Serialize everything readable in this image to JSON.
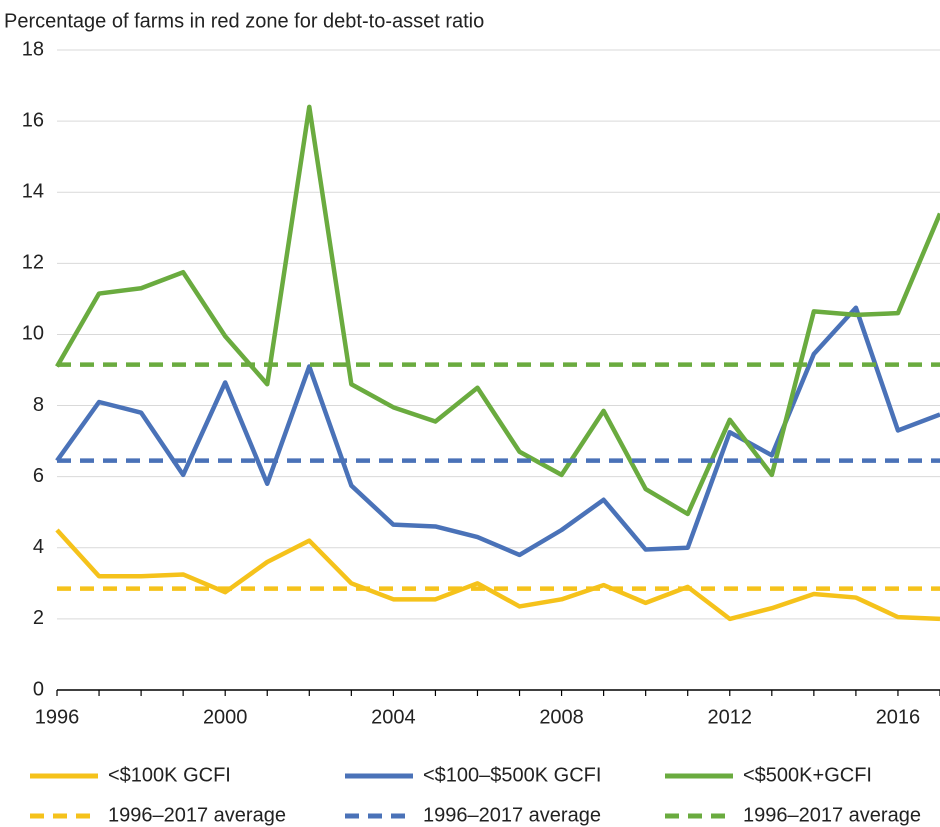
{
  "chart_data": {
    "type": "line",
    "title": "Percentage of farms in red zone for debt-to-asset ratio",
    "x": [
      1996,
      1997,
      1998,
      1999,
      2000,
      2001,
      2002,
      2003,
      2004,
      2005,
      2006,
      2007,
      2008,
      2009,
      2010,
      2011,
      2012,
      2013,
      2014,
      2015,
      2016,
      2017
    ],
    "xlim": [
      1996,
      2017
    ],
    "xticks": [
      1996,
      2000,
      2004,
      2008,
      2012,
      2016
    ],
    "ylim": [
      0,
      18
    ],
    "yticks": [
      0,
      2,
      4,
      6,
      8,
      10,
      12,
      14,
      16,
      18
    ],
    "grid": true,
    "series": [
      {
        "name": "<$100K GCFI",
        "color": "#f5c21b",
        "dashed": false,
        "values": [
          4.5,
          3.2,
          3.2,
          3.25,
          2.75,
          3.6,
          4.2,
          3.0,
          2.55,
          2.55,
          3.0,
          2.35,
          2.55,
          2.95,
          2.45,
          2.9,
          2.0,
          2.3,
          2.7,
          2.6,
          2.05,
          2.0
        ]
      },
      {
        "name": "<$100–$500K GCFI",
        "color": "#4a72b8",
        "dashed": false,
        "values": [
          6.45,
          8.1,
          7.8,
          6.05,
          8.65,
          5.8,
          9.1,
          5.75,
          4.65,
          4.6,
          4.3,
          3.8,
          4.5,
          5.35,
          3.95,
          4.0,
          7.25,
          6.6,
          9.45,
          10.75,
          7.3,
          7.75
        ]
      },
      {
        "name": "<$500K+GCFI",
        "color": "#6aab3f",
        "dashed": false,
        "values": [
          9.1,
          11.15,
          11.3,
          11.75,
          9.95,
          8.6,
          16.4,
          8.6,
          7.95,
          7.55,
          8.5,
          6.7,
          6.05,
          7.85,
          5.65,
          4.95,
          7.6,
          6.05,
          10.65,
          10.55,
          10.6,
          13.4
        ]
      },
      {
        "name": "1996–2017 average",
        "color": "#f5c21b",
        "dashed": true,
        "values": [
          2.85,
          2.85,
          2.85,
          2.85,
          2.85,
          2.85,
          2.85,
          2.85,
          2.85,
          2.85,
          2.85,
          2.85,
          2.85,
          2.85,
          2.85,
          2.85,
          2.85,
          2.85,
          2.85,
          2.85,
          2.85,
          2.85
        ]
      },
      {
        "name": "1996–2017 average",
        "color": "#4a72b8",
        "dashed": true,
        "values": [
          6.45,
          6.45,
          6.45,
          6.45,
          6.45,
          6.45,
          6.45,
          6.45,
          6.45,
          6.45,
          6.45,
          6.45,
          6.45,
          6.45,
          6.45,
          6.45,
          6.45,
          6.45,
          6.45,
          6.45,
          6.45,
          6.45
        ]
      },
      {
        "name": "1996–2017 average",
        "color": "#6aab3f",
        "dashed": true,
        "values": [
          9.15,
          9.15,
          9.15,
          9.15,
          9.15,
          9.15,
          9.15,
          9.15,
          9.15,
          9.15,
          9.15,
          9.15,
          9.15,
          9.15,
          9.15,
          9.15,
          9.15,
          9.15,
          9.15,
          9.15,
          9.15,
          9.15
        ]
      }
    ]
  }
}
